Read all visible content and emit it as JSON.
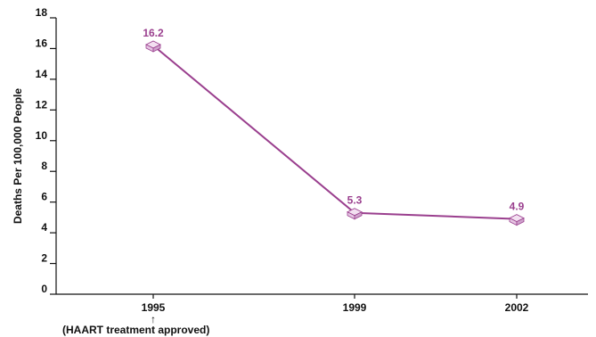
{
  "chart_data": {
    "type": "line",
    "categories": [
      "1995",
      "1999",
      "2002"
    ],
    "values": [
      16.2,
      5.3,
      4.9
    ],
    "data_labels": [
      "16.2",
      "5.3",
      "4.9"
    ],
    "xlabel": "",
    "ylabel": "Deaths Per 100,000 People",
    "ylim": [
      0,
      18
    ],
    "yticks": [
      "0",
      "2",
      "4",
      "6",
      "8",
      "10",
      "12",
      "14",
      "16",
      "18"
    ],
    "annotation": {
      "category": "1995",
      "arrow": "↑",
      "text": "(HAART treatment approved)"
    },
    "grid": false,
    "legend": "none"
  },
  "colors": {
    "series": "#9a3f8e",
    "marker_face": "#e6c6e4",
    "marker_edge": "#9a3f8e",
    "axis": "#111111",
    "text": "#111111"
  }
}
